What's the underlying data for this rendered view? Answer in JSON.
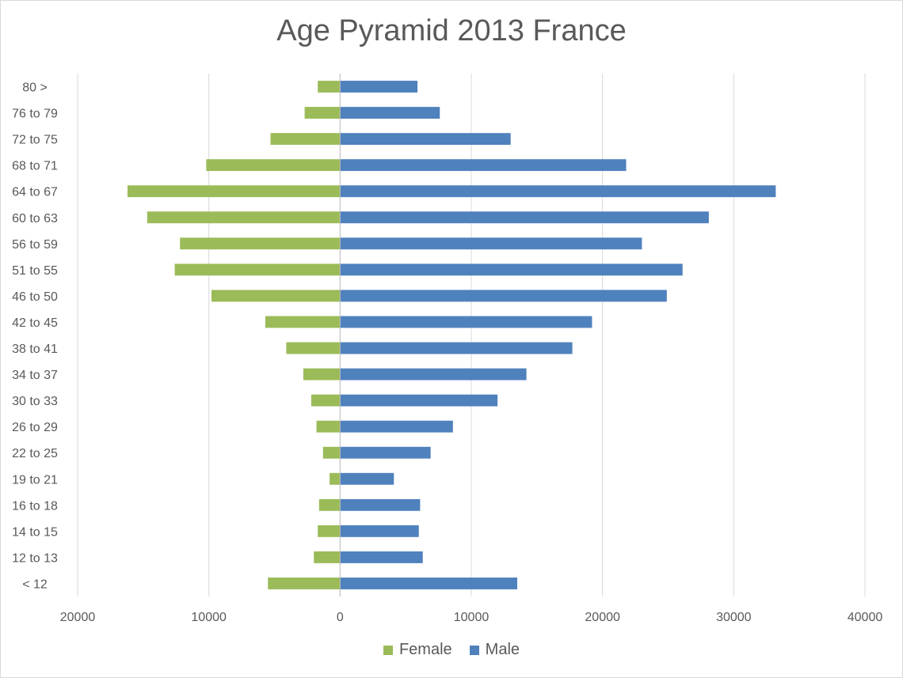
{
  "chart_data": {
    "type": "bar",
    "orientation": "horizontal",
    "title": "Age Pyramid 2013 France",
    "categories": [
      "80 >",
      "76 to 79",
      "72 to 75",
      "68 to 71",
      "64 to 67",
      "60 to 63",
      "56 to 59",
      "51 to 55",
      "46 to 50",
      "42 to 45",
      "38 to 41",
      "34 to 37",
      "30 to 33",
      "26 to 29",
      "22 to 25",
      "19 to 21",
      "16 to 18",
      "14 to 15",
      "12 to 13",
      "< 12"
    ],
    "series": [
      {
        "name": "Female",
        "color": "#9bbb59",
        "values": [
          -1700,
          -2700,
          -5300,
          -10200,
          -16200,
          -14700,
          -12200,
          -12600,
          -9800,
          -5700,
          -4100,
          -2800,
          -2200,
          -1800,
          -1300,
          -800,
          -1600,
          -1700,
          -2000,
          -5500
        ]
      },
      {
        "name": "Male",
        "color": "#4f81bd",
        "values": [
          5900,
          7600,
          13000,
          21800,
          33200,
          28100,
          23000,
          26100,
          24900,
          19200,
          17700,
          14200,
          12000,
          8600,
          6900,
          4100,
          6100,
          6000,
          6300,
          13500
        ]
      }
    ],
    "xlim": [
      -20000,
      40000
    ],
    "xticks": [
      -20000,
      -10000,
      0,
      10000,
      20000,
      30000,
      40000
    ],
    "xtick_labels": [
      "20000",
      "10000",
      "0",
      "10000",
      "20000",
      "30000",
      "40000"
    ],
    "grid": true,
    "legend_position": "bottom"
  }
}
